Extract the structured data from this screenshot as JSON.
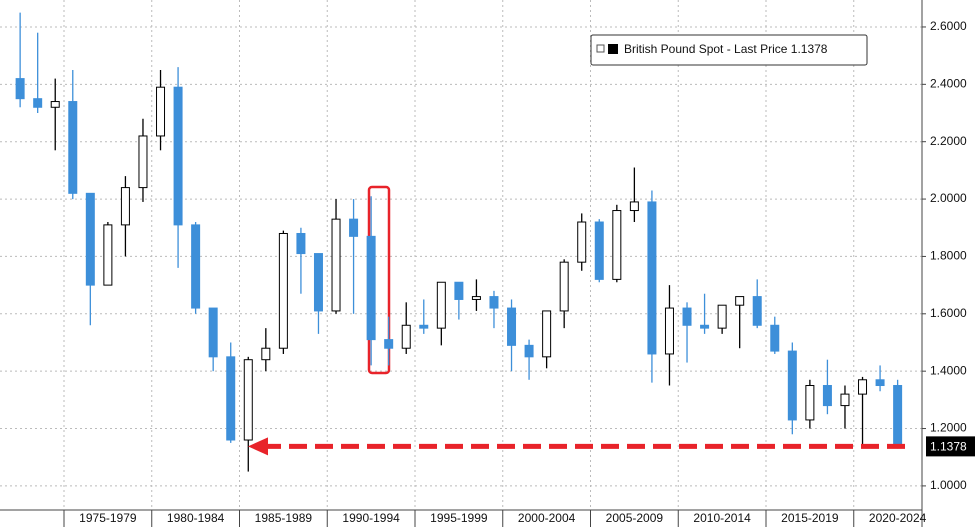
{
  "chart_data": {
    "type": "candlestick",
    "legend": "British Pound Spot - Last Price",
    "last_price": 1.1378,
    "periods": [
      "1975-1979",
      "1980-1984",
      "1985-1989",
      "1990-1994",
      "1995-1999",
      "2000-2004",
      "2005-2009",
      "2010-2014",
      "2015-2019",
      "2020-2024"
    ],
    "open": [
      2.42,
      2.35,
      2.32,
      2.34,
      2.02,
      1.7,
      1.91,
      2.04,
      2.22,
      2.39,
      1.91,
      1.62,
      1.45,
      1.16,
      1.44,
      1.48,
      1.88,
      1.81,
      1.61,
      1.93,
      1.87,
      1.51,
      1.48,
      1.56,
      1.55,
      1.71,
      1.65,
      1.66,
      1.62,
      1.49,
      1.45,
      1.61,
      1.78,
      1.92,
      1.72,
      1.96,
      1.99,
      1.46,
      1.62,
      1.56,
      1.55,
      1.63,
      1.66,
      1.56,
      1.47,
      1.23,
      1.35,
      1.28,
      1.32,
      1.37,
      1.35
    ],
    "high": [
      2.65,
      2.58,
      2.42,
      2.45,
      2.02,
      1.92,
      2.08,
      2.28,
      2.45,
      2.46,
      1.92,
      1.62,
      1.5,
      1.45,
      1.55,
      1.89,
      1.9,
      1.81,
      2.0,
      2.0,
      2.01,
      1.59,
      1.64,
      1.65,
      1.71,
      1.71,
      1.72,
      1.68,
      1.65,
      1.51,
      1.61,
      1.79,
      1.95,
      1.93,
      1.98,
      2.11,
      2.03,
      1.7,
      1.64,
      1.67,
      1.63,
      1.66,
      1.72,
      1.59,
      1.5,
      1.37,
      1.44,
      1.35,
      1.38,
      1.42,
      1.37
    ],
    "low": [
      2.32,
      2.3,
      2.17,
      2.0,
      1.56,
      1.7,
      1.8,
      1.99,
      2.17,
      1.76,
      1.6,
      1.4,
      1.15,
      1.05,
      1.4,
      1.46,
      1.67,
      1.53,
      1.6,
      1.6,
      1.42,
      1.42,
      1.46,
      1.53,
      1.49,
      1.58,
      1.61,
      1.55,
      1.4,
      1.37,
      1.41,
      1.55,
      1.75,
      1.71,
      1.71,
      1.92,
      1.36,
      1.35,
      1.43,
      1.53,
      1.53,
      1.48,
      1.55,
      1.46,
      1.18,
      1.2,
      1.25,
      1.2,
      1.14,
      1.33,
      1.13
    ],
    "close": [
      2.35,
      2.32,
      2.34,
      2.02,
      1.7,
      1.91,
      2.04,
      2.22,
      2.39,
      1.91,
      1.62,
      1.45,
      1.16,
      1.44,
      1.48,
      1.88,
      1.81,
      1.61,
      1.93,
      1.87,
      1.51,
      1.48,
      1.56,
      1.55,
      1.71,
      1.65,
      1.66,
      1.62,
      1.49,
      1.45,
      1.61,
      1.78,
      1.92,
      1.72,
      1.96,
      1.99,
      1.46,
      1.62,
      1.56,
      1.55,
      1.63,
      1.66,
      1.56,
      1.47,
      1.23,
      1.35,
      1.28,
      1.32,
      1.37,
      1.35,
      1.1378
    ],
    "up_color": "#ffffff",
    "down_color": "#3d8fd9",
    "ylim": [
      0.916,
      2.694
    ],
    "yticks": [
      {
        "value": 1.0,
        "label": "1.0000"
      },
      {
        "value": 1.2,
        "label": "1.2000"
      },
      {
        "value": 1.4,
        "label": "1.4000"
      },
      {
        "value": 1.6,
        "label": "1.6000"
      },
      {
        "value": 1.8,
        "label": "1.8000"
      },
      {
        "value": 2.0,
        "label": "2.0000"
      },
      {
        "value": 2.2,
        "label": "2.2000"
      },
      {
        "value": 2.4,
        "label": "2.4000"
      },
      {
        "value": 2.6,
        "label": "2.6000"
      }
    ],
    "grid": true
  }
}
